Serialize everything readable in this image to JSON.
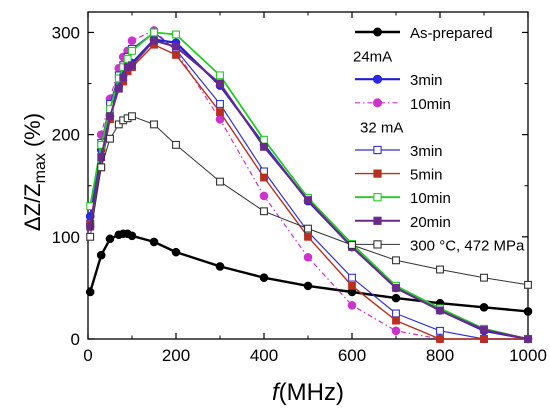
{
  "chart_data": {
    "type": "line",
    "xlabel_italic": "f",
    "xlabel_rest": "(MHz)",
    "ylabel_prefix": "ΔZ/Z",
    "ylabel_sub": "max",
    "ylabel_suffix": "(%)",
    "xlim": [
      0,
      1000
    ],
    "ylim": [
      0,
      320
    ],
    "xticks": [
      0,
      200,
      400,
      600,
      800,
      1000
    ],
    "yticks": [
      0,
      100,
      200,
      300
    ],
    "legend_position": "top-right",
    "legend_headers": [
      {
        "text": "24mA",
        "before_series": 1
      },
      {
        "text": "32 mA",
        "before_series": 3
      }
    ],
    "series": [
      {
        "name": "As-prepared",
        "color": "#000000",
        "marker": "circle",
        "fill": "#000000",
        "line_width": 2.4,
        "dash": "",
        "x": [
          5,
          30,
          50,
          70,
          80,
          90,
          100,
          150,
          200,
          300,
          400,
          500,
          600,
          700,
          800,
          900,
          1000
        ],
        "y": [
          46,
          82,
          98,
          102,
          103,
          103,
          101,
          95,
          85,
          71,
          60,
          52,
          46,
          40,
          35,
          31,
          27
        ]
      },
      {
        "name": "3min",
        "color": "#1f1fd0",
        "marker": "circle",
        "fill": "#2a2ae8",
        "line_width": 2.2,
        "dash": "",
        "x": [
          5,
          30,
          50,
          70,
          80,
          90,
          100,
          150,
          200,
          300,
          400,
          500,
          600,
          700,
          800,
          900,
          1000
        ],
        "y": [
          120,
          185,
          218,
          248,
          258,
          264,
          270,
          293,
          290,
          248,
          190,
          135,
          90,
          50,
          28,
          8,
          0
        ]
      },
      {
        "name": "10min",
        "color": "#cc33cc",
        "marker": "circle",
        "fill": "#cc33cc",
        "line_width": 1.2,
        "dash": "5,3,1.5,3",
        "x": [
          5,
          30,
          50,
          70,
          80,
          90,
          100,
          150,
          200,
          300,
          400,
          500,
          600,
          700,
          800,
          900,
          1000
        ],
        "y": [
          110,
          200,
          235,
          265,
          276,
          282,
          292,
          302,
          282,
          215,
          140,
          80,
          33,
          8,
          0,
          0,
          0
        ]
      },
      {
        "name": "3min",
        "color": "#3333cc",
        "marker": "square-open",
        "fill": "#ffffff",
        "line_width": 1.2,
        "dash": "",
        "x": [
          5,
          30,
          50,
          70,
          80,
          90,
          100,
          150,
          200,
          300,
          400,
          500,
          600,
          700,
          800,
          900,
          1000
        ],
        "y": [
          113,
          192,
          230,
          258,
          268,
          276,
          284,
          300,
          283,
          230,
          164,
          105,
          60,
          25,
          8,
          0,
          0
        ]
      },
      {
        "name": "5min",
        "color": "#b83020",
        "marker": "square",
        "fill": "#b83020",
        "line_width": 1.4,
        "dash": "",
        "x": [
          5,
          30,
          50,
          70,
          80,
          90,
          100,
          150,
          200,
          300,
          400,
          500,
          600,
          700,
          800,
          900,
          1000
        ],
        "y": [
          112,
          168,
          215,
          245,
          252,
          262,
          266,
          288,
          278,
          222,
          158,
          100,
          52,
          18,
          0,
          0,
          0
        ]
      },
      {
        "name": "10min",
        "color": "#22cc22",
        "marker": "square-open",
        "fill": "#ffffff",
        "line_width": 1.8,
        "dash": "",
        "x": [
          5,
          30,
          50,
          70,
          80,
          90,
          100,
          150,
          200,
          300,
          400,
          500,
          600,
          700,
          800,
          900,
          1000
        ],
        "y": [
          130,
          190,
          225,
          255,
          266,
          274,
          282,
          300,
          298,
          258,
          195,
          138,
          93,
          52,
          30,
          10,
          0
        ]
      },
      {
        "name": "20min",
        "color": "#6a2a8c",
        "marker": "square",
        "fill": "#6a2a8c",
        "line_width": 2.0,
        "dash": "",
        "x": [
          5,
          30,
          50,
          70,
          80,
          90,
          100,
          150,
          200,
          300,
          400,
          500,
          600,
          700,
          800,
          900,
          1000
        ],
        "y": [
          110,
          178,
          218,
          245,
          256,
          266,
          268,
          292,
          286,
          250,
          188,
          136,
          90,
          50,
          28,
          9,
          0
        ]
      },
      {
        "name": "300 °C, 472 MPa",
        "color": "#333333",
        "marker": "square-open",
        "fill": "#ffffff",
        "line_width": 1.0,
        "dash": "",
        "x": [
          5,
          30,
          50,
          70,
          80,
          90,
          100,
          150,
          200,
          300,
          400,
          500,
          600,
          700,
          800,
          900,
          1000
        ],
        "y": [
          100,
          168,
          196,
          210,
          214,
          216,
          218,
          210,
          190,
          154,
          125,
          108,
          92,
          77,
          68,
          60,
          53
        ]
      }
    ]
  }
}
